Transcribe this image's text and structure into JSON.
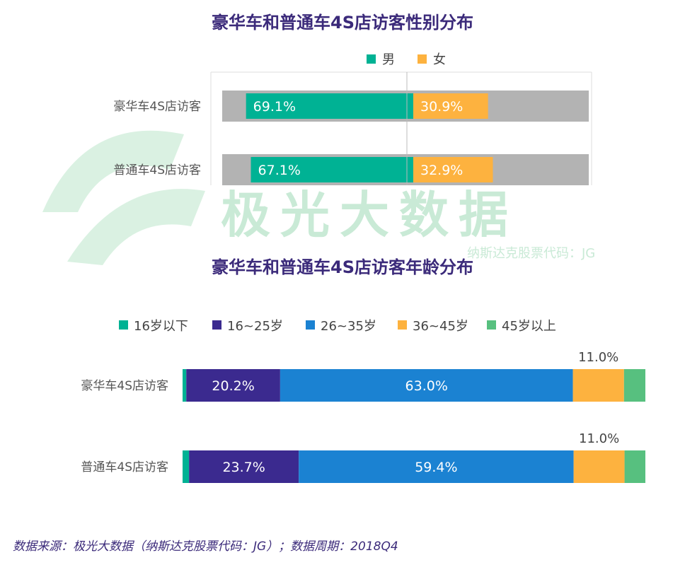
{
  "watermark": {
    "brand": "极光大数据",
    "sub": "纳斯达克股票代码：JG"
  },
  "source": "数据来源：极光大数据（纳斯达克股票代码：JG）；数据周期：2018Q4",
  "chart_data": [
    {
      "type": "bar",
      "orientation": "horizontal-stacked",
      "title": "豪华车和普通车4S店访客性别分布",
      "categories": [
        "豪华车4S店访客",
        "普通车4S店访客"
      ],
      "series": [
        {
          "name": "男",
          "color": "#00b294",
          "values": [
            69.1,
            67.1
          ]
        },
        {
          "name": "女",
          "color": "#fdb23f",
          "values": [
            30.9,
            32.9
          ]
        }
      ],
      "labels": [
        [
          "69.1%",
          "30.9%"
        ],
        [
          "67.1%",
          "32.9%"
        ]
      ],
      "legend_position": "top",
      "background_bar": true
    },
    {
      "type": "bar",
      "orientation": "horizontal-stacked",
      "title": "豪华车和普通车4S店访客年龄分布",
      "categories": [
        "豪华车4S店访客",
        "普通车4S店访客"
      ],
      "series": [
        {
          "name": "16岁以下",
          "color": "#00b294",
          "values": [
            0.8,
            1.4
          ]
        },
        {
          "name": "16~25岁",
          "color": "#3b2a8f",
          "values": [
            20.2,
            23.7
          ]
        },
        {
          "name": "26~35岁",
          "color": "#1b82d2",
          "values": [
            63.0,
            59.4
          ]
        },
        {
          "name": "36~45岁",
          "color": "#fdb23f",
          "values": [
            11.0,
            11.0
          ]
        },
        {
          "name": "45岁以上",
          "color": "#57c07f",
          "values": [
            4.6,
            4.5
          ]
        }
      ],
      "labels": [
        [
          "",
          "20.2%",
          "63.0%",
          "11.0%",
          ""
        ],
        [
          "",
          "23.7%",
          "59.4%",
          "11.0%",
          ""
        ]
      ],
      "legend_position": "top"
    }
  ]
}
